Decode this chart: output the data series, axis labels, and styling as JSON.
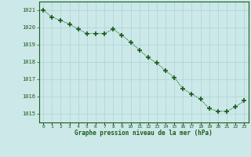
{
  "x": [
    0,
    1,
    2,
    3,
    4,
    5,
    6,
    7,
    8,
    9,
    10,
    11,
    12,
    13,
    14,
    15,
    16,
    17,
    18,
    19,
    20,
    21,
    22,
    23
  ],
  "y": [
    1021.0,
    1020.6,
    1020.4,
    1020.2,
    1019.9,
    1019.65,
    1019.65,
    1019.65,
    1019.9,
    1019.55,
    1019.15,
    1018.7,
    1018.25,
    1017.95,
    1017.5,
    1017.1,
    1016.45,
    1016.15,
    1015.85,
    1015.3,
    1015.15,
    1015.15,
    1015.4,
    1015.75
  ],
  "line_color": "#1a5c1a",
  "marker_color": "#1a5c1a",
  "bg_color": "#cce8e8",
  "grid_color": "#aad4d4",
  "axis_label_color": "#1a5c1a",
  "tick_color": "#1a5c1a",
  "xlabel": "Graphe pression niveau de la mer (hPa)",
  "ylim": [
    1014.5,
    1021.5
  ],
  "xlim": [
    -0.5,
    23.5
  ],
  "yticks": [
    1015,
    1016,
    1017,
    1018,
    1019,
    1020,
    1021
  ],
  "xticks": [
    0,
    1,
    2,
    3,
    4,
    5,
    6,
    7,
    8,
    9,
    10,
    11,
    12,
    13,
    14,
    15,
    16,
    17,
    18,
    19,
    20,
    21,
    22,
    23
  ],
  "xtick_labels": [
    "0",
    "1",
    "2",
    "3",
    "4",
    "5",
    "6",
    "7",
    "8",
    "9",
    "10",
    "11",
    "12",
    "13",
    "14",
    "15",
    "16",
    "17",
    "18",
    "19",
    "20",
    "21",
    "22",
    "23"
  ]
}
